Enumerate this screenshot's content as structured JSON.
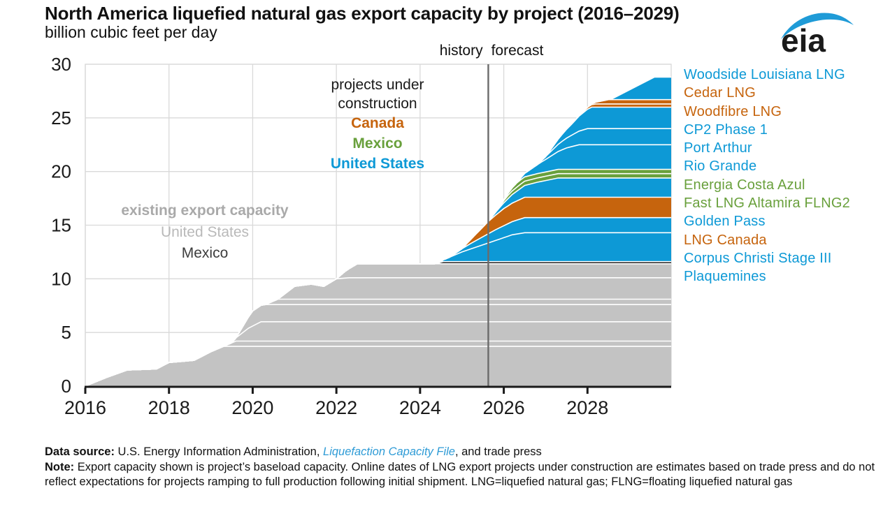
{
  "header": {
    "title": "North America liquefied natural gas export capacity by project (2016–2029)",
    "subtitle": "billion cubic feet per day",
    "logo_text": "eia",
    "logo_color": "#1F9BD7"
  },
  "annotations": {
    "history_label": "history",
    "forecast_label": "forecast",
    "construction": {
      "line1": "projects under",
      "line2": "construction",
      "items": [
        {
          "label": "Canada",
          "color": "#C6640D"
        },
        {
          "label": "Mexico",
          "color": "#69A03C"
        },
        {
          "label": "United States",
          "color": "#0D99D6"
        }
      ]
    },
    "existing": {
      "title": "existing export capacity",
      "title_color": "#A9A9A9",
      "items": [
        {
          "label": "United States",
          "color": "#B9B9B9"
        },
        {
          "label": "Mexico",
          "color": "#3D3D3D"
        }
      ]
    }
  },
  "legend": {
    "items": [
      {
        "label": "Woodside Louisiana LNG",
        "color": "#0D99D6"
      },
      {
        "label": "Cedar LNG",
        "color": "#C6640D"
      },
      {
        "label": "Woodfibre LNG",
        "color": "#C6640D"
      },
      {
        "label": "CP2 Phase 1",
        "color": "#0D99D6"
      },
      {
        "label": "Port Arthur",
        "color": "#0D99D6"
      },
      {
        "label": "Rio Grande",
        "color": "#0D99D6"
      },
      {
        "label": "Energia Costa Azul",
        "color": "#69A03C"
      },
      {
        "label": "Fast LNG Altamira FLNG2",
        "color": "#69A03C"
      },
      {
        "label": "Golden Pass",
        "color": "#0D99D6"
      },
      {
        "label": "LNG Canada",
        "color": "#C6640D"
      },
      {
        "label": "Corpus Christi Stage III",
        "color": "#0D99D6"
      },
      {
        "label": "Plaquemines",
        "color": "#0D99D6"
      }
    ]
  },
  "chart_data": {
    "type": "area",
    "stacked": true,
    "title": "North America liquefied natural gas export capacity by project (2016–2029)",
    "ylabel": "billion cubic feet per day",
    "xlabel": "",
    "x_range": [
      2016,
      2030
    ],
    "xticks": [
      2016,
      2018,
      2020,
      2022,
      2024,
      2026,
      2028
    ],
    "yticks": [
      0,
      5,
      10,
      15,
      20,
      25,
      30
    ],
    "ylim": [
      0,
      30
    ],
    "grid": true,
    "boundary_x": 2025.63,
    "boundary_label": "history forecast",
    "colors": {
      "united_states": "#0D99D6",
      "canada": "#C6640D",
      "mexico_new": "#69A03C",
      "existing_us": "#C3C3C3",
      "existing_mexico": "#1F1F1F",
      "separator": "#FFFFFF",
      "gridline": "#D9D9D9",
      "boundary_line": "#6B6B6B",
      "axis": "#1A1A1A"
    },
    "series": [
      {
        "name": "existing-us-1",
        "group": "existing United States",
        "color": "#C3C3C3",
        "points": [
          [
            2016,
            0
          ],
          [
            2016.5,
            0.8
          ],
          [
            2017,
            1.5
          ],
          [
            2017.7,
            1.6
          ],
          [
            2018,
            2.2
          ],
          [
            2018.6,
            2.4
          ],
          [
            2019,
            3.2
          ],
          [
            2019.3,
            3.7
          ],
          [
            2030,
            3.7
          ]
        ]
      },
      {
        "name": "existing-us-2",
        "group": "existing United States",
        "color": "#C3C3C3",
        "points": [
          [
            2019.3,
            0
          ],
          [
            2019.6,
            0.5
          ],
          [
            2030,
            0.5
          ]
        ]
      },
      {
        "name": "existing-us-3",
        "group": "existing United States",
        "color": "#C3C3C3",
        "points": [
          [
            2019.5,
            0
          ],
          [
            2019.9,
            1.2
          ],
          [
            2020.2,
            1.8
          ],
          [
            2030,
            1.8
          ]
        ]
      },
      {
        "name": "existing-us-4",
        "group": "existing United States",
        "color": "#C3C3C3",
        "points": [
          [
            2019.6,
            0
          ],
          [
            2020,
            1.4
          ],
          [
            2020.3,
            1.6
          ],
          [
            2030,
            1.6
          ]
        ]
      },
      {
        "name": "existing-us-5",
        "group": "existing United States",
        "color": "#C3C3C3",
        "points": [
          [
            2020.3,
            0
          ],
          [
            2020.6,
            0.5
          ],
          [
            2030,
            0.5
          ]
        ]
      },
      {
        "name": "existing-us-6",
        "group": "existing United States",
        "color": "#C3C3C3",
        "points": [
          [
            2020.6,
            0
          ],
          [
            2021,
            1.2
          ],
          [
            2021.4,
            1.4
          ],
          [
            2021.7,
            1.2
          ],
          [
            2022,
            1.9
          ],
          [
            2022.3,
            2.0
          ],
          [
            2030,
            2.0
          ]
        ]
      },
      {
        "name": "existing-us-7",
        "group": "existing United States",
        "color": "#C3C3C3",
        "points": [
          [
            2022,
            0
          ],
          [
            2022.2,
            0.6
          ],
          [
            2022.5,
            1.3
          ],
          [
            2030,
            1.3
          ]
        ]
      },
      {
        "name": "existing-mexico",
        "group": "existing Mexico",
        "color": "#1F1F1F",
        "points": [
          [
            2024.35,
            0
          ],
          [
            2024.55,
            0.2
          ],
          [
            2030,
            0.2
          ]
        ]
      },
      {
        "name": "Plaquemines",
        "group": "United States",
        "color": "#0D99D6",
        "points": [
          [
            2024.45,
            0
          ],
          [
            2025.0,
            0.9
          ],
          [
            2025.6,
            1.7
          ],
          [
            2026.2,
            2.5
          ],
          [
            2026.5,
            2.7
          ],
          [
            2030,
            2.7
          ]
        ]
      },
      {
        "name": "Corpus Christi Stage III",
        "group": "United States",
        "color": "#0D99D6",
        "points": [
          [
            2024.7,
            0
          ],
          [
            2025.2,
            0.5
          ],
          [
            2025.8,
            1.0
          ],
          [
            2026.5,
            1.4
          ],
          [
            2030,
            1.4
          ]
        ]
      },
      {
        "name": "LNG Canada",
        "group": "Canada",
        "color": "#C6640D",
        "points": [
          [
            2025.0,
            0
          ],
          [
            2025.6,
            1.1
          ],
          [
            2026.0,
            1.6
          ],
          [
            2026.5,
            1.9
          ],
          [
            2030,
            1.9
          ]
        ]
      },
      {
        "name": "Golden Pass",
        "group": "United States",
        "color": "#0D99D6",
        "points": [
          [
            2025.6,
            0
          ],
          [
            2026.2,
            0.8
          ],
          [
            2026.8,
            1.4
          ],
          [
            2027.3,
            1.8
          ],
          [
            2030,
            1.8
          ]
        ]
      },
      {
        "name": "Fast LNG Altamira FLNG2",
        "group": "Mexico",
        "color": "#69A03C",
        "points": [
          [
            2025.8,
            0
          ],
          [
            2026.1,
            0.3
          ],
          [
            2026.4,
            0.4
          ],
          [
            2030,
            0.4
          ]
        ]
      },
      {
        "name": "Energia Costa Azul",
        "group": "Mexico",
        "color": "#69A03C",
        "points": [
          [
            2025.9,
            0
          ],
          [
            2026.3,
            0.4
          ],
          [
            2030,
            0.4
          ]
        ]
      },
      {
        "name": "Rio Grande",
        "group": "United States",
        "color": "#0D99D6",
        "points": [
          [
            2026.3,
            0
          ],
          [
            2026.9,
            1.0
          ],
          [
            2027.5,
            2.0
          ],
          [
            2027.8,
            2.3
          ],
          [
            2030,
            2.3
          ]
        ]
      },
      {
        "name": "Port Arthur",
        "group": "United States",
        "color": "#0D99D6",
        "points": [
          [
            2026.8,
            0
          ],
          [
            2027.4,
            0.8
          ],
          [
            2028.0,
            1.5
          ],
          [
            2030,
            1.5
          ]
        ]
      },
      {
        "name": "CP2 Phase 1",
        "group": "United States",
        "color": "#0D99D6",
        "points": [
          [
            2027.0,
            0
          ],
          [
            2027.6,
            1.0
          ],
          [
            2028.1,
            2.0
          ],
          [
            2030,
            2.0
          ]
        ]
      },
      {
        "name": "Woodfibre LNG",
        "group": "Canada",
        "color": "#C6640D",
        "points": [
          [
            2027.7,
            0
          ],
          [
            2028.2,
            0.3
          ],
          [
            2030,
            0.3
          ]
        ]
      },
      {
        "name": "Cedar LNG",
        "group": "Canada",
        "color": "#C6640D",
        "points": [
          [
            2028.0,
            0
          ],
          [
            2028.5,
            0.4
          ],
          [
            2030,
            0.4
          ]
        ]
      },
      {
        "name": "Woodside Louisiana LNG",
        "group": "United States",
        "color": "#0D99D6",
        "points": [
          [
            2028.55,
            0
          ],
          [
            2029.1,
            1.1
          ],
          [
            2029.6,
            2.1
          ],
          [
            2030,
            2.1
          ]
        ]
      }
    ]
  },
  "footer": {
    "data_source_label": "Data source:",
    "data_source_pre": " U.S. Energy Information Administration, ",
    "link_text": "Liquefaction Capacity File",
    "link_color": "#2E9BD6",
    "data_source_post": ", and trade press",
    "note_label": "Note:",
    "note_text": " Export capacity shown is project’s baseload capacity. Online dates of LNG export projects under construction are estimates based on trade press and do not reflect expectations for projects ramping to full production following initial shipment. LNG=liquefied natural gas; FLNG=floating liquefied natural gas"
  }
}
